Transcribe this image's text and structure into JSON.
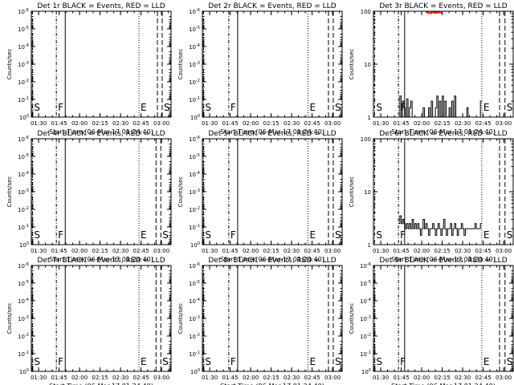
{
  "figure": {
    "xlabel": "Start Time (06-Mar-17 01:24:40)",
    "ylabel": "Counts/sec",
    "x_tick_labels": [
      "01:30",
      "01:45",
      "02:00",
      "02:15",
      "02:30",
      "02:45",
      "03:00"
    ],
    "x_ticks_minutes": [
      90,
      105,
      120,
      135,
      150,
      165,
      180
    ],
    "x_range_minutes": [
      84.67,
      187
    ],
    "flag_labels": {
      "S": "S",
      "F": "F",
      "E": "E"
    },
    "colors": {
      "events": "#000000",
      "lld": "#ff0000"
    }
  },
  "chart_data": [
    {
      "id": "det1r",
      "type": "line",
      "title": "Det 1r BLACK = Events, RED = LLD",
      "yscale": "log",
      "ylim": [
        1,
        1e-06
      ],
      "y_tick_labels": [
        "10^-6",
        "10^-5",
        "10^-4",
        "10^-3",
        "10^-2",
        "10^-1",
        "10^0"
      ],
      "y_tick_values": [
        1e-06,
        1e-05,
        0.0001,
        0.001,
        0.01,
        0.1,
        1
      ],
      "markers": [
        {
          "label": "S",
          "x": 85.5,
          "style": "dashdot"
        },
        {
          "label": "F",
          "x": 103.0,
          "style": "dashdot"
        },
        {
          "label": "",
          "x": 109.5,
          "style": "solid"
        },
        {
          "label": "E",
          "x": 163.5,
          "style": "dotted"
        },
        {
          "label": "",
          "x": 177.0,
          "style": "dashed"
        },
        {
          "label": "S",
          "x": 180.5,
          "style": "dashed"
        }
      ],
      "series": []
    },
    {
      "id": "det2r",
      "type": "line",
      "title": "Det 2r BLACK = Events, RED = LLD",
      "yscale": "log",
      "ylim": [
        1,
        1e-06
      ],
      "y_tick_labels": [
        "10^-6",
        "10^-5",
        "10^-4",
        "10^-3",
        "10^-2",
        "10^-1",
        "10^0"
      ],
      "y_tick_values": [
        1e-06,
        1e-05,
        0.0001,
        0.001,
        0.01,
        0.1,
        1
      ],
      "markers": [
        {
          "label": "S",
          "x": 85.5,
          "style": "dashdot"
        },
        {
          "label": "F",
          "x": 104.0,
          "style": "dashdot"
        },
        {
          "label": "",
          "x": 110.5,
          "style": "solid"
        },
        {
          "label": "E",
          "x": 162.0,
          "style": "dotted"
        },
        {
          "label": "",
          "x": 177.0,
          "style": "dashed"
        },
        {
          "label": "S",
          "x": 180.5,
          "style": "dashed"
        }
      ],
      "series": []
    },
    {
      "id": "det3r",
      "type": "line",
      "title": "Det 3r BLACK = Events, RED = LLD",
      "yscale": "log",
      "ylim": [
        1,
        100
      ],
      "y_tick_labels": [
        "1",
        "10",
        "100"
      ],
      "y_tick_values": [
        1,
        10,
        100
      ],
      "markers": [
        {
          "label": "S",
          "x": 85.5,
          "style": "dashdot"
        },
        {
          "label": "F",
          "x": 103.0,
          "style": "dashdot"
        },
        {
          "label": "",
          "x": 107.5,
          "style": "solid"
        },
        {
          "label": "E",
          "x": 164.0,
          "style": "dotted"
        },
        {
          "label": "",
          "x": 177.0,
          "style": "dashed"
        },
        {
          "label": "S",
          "x": 181.0,
          "style": "dashed"
        }
      ],
      "series": [
        {
          "color": "#000000",
          "x": [
            103,
            104,
            105,
            106,
            107,
            108,
            109,
            110,
            111,
            112,
            113,
            114,
            115,
            116,
            117,
            118,
            119,
            120,
            121,
            122,
            123,
            124,
            125,
            126,
            127,
            128,
            129,
            130,
            131,
            132,
            133,
            134,
            135,
            136,
            137,
            138,
            139,
            140,
            141,
            142,
            143,
            144,
            145,
            146,
            147,
            148,
            149,
            150,
            151,
            152,
            153,
            154,
            155,
            156,
            157,
            158,
            159,
            160,
            161,
            162,
            163
          ],
          "y": [
            1,
            2.5,
            1,
            2,
            1.5,
            1,
            2.2,
            1,
            1.5,
            2,
            1,
            1,
            1,
            1,
            1,
            1,
            1,
            1,
            1.5,
            1,
            1,
            1,
            1.5,
            1,
            2,
            1,
            1,
            1.5,
            2.5,
            1,
            2,
            1,
            2.5,
            1,
            2,
            1,
            1,
            1.5,
            1,
            2,
            1,
            2.5,
            1,
            1,
            1,
            1,
            1,
            1,
            1,
            1,
            1.5,
            1,
            1,
            1,
            1,
            1,
            1,
            1,
            1,
            1,
            2
          ]
        },
        {
          "color": "#ff0000",
          "x": [
            123,
            125,
            127,
            129,
            131,
            133
          ],
          "y": [
            95,
            92,
            96,
            93,
            95,
            94
          ]
        }
      ]
    },
    {
      "id": "det4r",
      "type": "line",
      "title": "Det 4r BLACK = Events, RED = LLD",
      "yscale": "log",
      "ylim": [
        1,
        1e-06
      ],
      "y_tick_labels": [
        "10^-6",
        "10^-5",
        "10^-4",
        "10^-3",
        "10^-2",
        "10^-1",
        "10^0"
      ],
      "y_tick_values": [
        1e-06,
        1e-05,
        0.0001,
        0.001,
        0.01,
        0.1,
        1
      ],
      "markers": [
        {
          "label": "S",
          "x": 85.5,
          "style": "dashdot"
        },
        {
          "label": "F",
          "x": 103.0,
          "style": "dashdot"
        },
        {
          "label": "",
          "x": 109.5,
          "style": "solid"
        },
        {
          "label": "E",
          "x": 163.5,
          "style": "dotted"
        },
        {
          "label": "",
          "x": 176.0,
          "style": "dashed"
        },
        {
          "label": "S",
          "x": 179.5,
          "style": "dashed"
        }
      ],
      "series": []
    },
    {
      "id": "det5r",
      "type": "line",
      "title": "Det 5r BLACK = Events, RED = LLD",
      "yscale": "log",
      "ylim": [
        1,
        1e-06
      ],
      "y_tick_labels": [
        "10^-6",
        "10^-5",
        "10^-4",
        "10^-3",
        "10^-2",
        "10^-1",
        "10^0"
      ],
      "y_tick_values": [
        1e-06,
        1e-05,
        0.0001,
        0.001,
        0.01,
        0.1,
        1
      ],
      "markers": [
        {
          "label": "S",
          "x": 85.5,
          "style": "dashdot"
        },
        {
          "label": "F",
          "x": 104.0,
          "style": "dashdot"
        },
        {
          "label": "",
          "x": 110.5,
          "style": "solid"
        },
        {
          "label": "E",
          "x": 162.0,
          "style": "dotted"
        },
        {
          "label": "",
          "x": 177.0,
          "style": "dashed"
        },
        {
          "label": "S",
          "x": 180.5,
          "style": "dashed"
        }
      ],
      "series": []
    },
    {
      "id": "det6r",
      "type": "line",
      "title": "Det 6r BLACK = Events, RED = LLD",
      "yscale": "log",
      "ylim": [
        1,
        100
      ],
      "y_tick_labels": [
        "1",
        "10",
        "100"
      ],
      "y_tick_values": [
        1,
        10,
        100
      ],
      "markers": [
        {
          "label": "S",
          "x": 85.5,
          "style": "dashdot"
        },
        {
          "label": "F",
          "x": 103.0,
          "style": "dashdot"
        },
        {
          "label": "",
          "x": 107.5,
          "style": "solid"
        },
        {
          "label": "E",
          "x": 164.0,
          "style": "dotted"
        },
        {
          "label": "",
          "x": 177.0,
          "style": "dashed"
        },
        {
          "label": "S",
          "x": 181.0,
          "style": "dashed"
        }
      ],
      "series": [
        {
          "color": "#000000",
          "x": [
            103,
            104,
            105,
            106,
            107,
            108,
            109,
            110,
            111,
            112,
            113,
            114,
            115,
            116,
            117,
            118,
            119,
            120,
            121,
            122,
            123,
            124,
            125,
            126,
            127,
            128,
            129,
            130,
            131,
            132,
            133,
            134,
            135,
            136,
            137,
            138,
            139,
            140,
            141,
            142,
            143,
            144,
            145,
            146,
            147,
            148,
            149,
            150,
            151,
            152,
            153,
            154,
            155,
            156,
            157,
            158,
            159,
            160,
            161,
            162,
            163
          ],
          "y": [
            2.5,
            3.5,
            2.5,
            3,
            2.5,
            2,
            2.5,
            2,
            2.5,
            2,
            3,
            2,
            2.5,
            2,
            2.5,
            2,
            1.5,
            2,
            3,
            2,
            2.5,
            2,
            1.5,
            2,
            2,
            2.5,
            2,
            1.5,
            2,
            2.5,
            2,
            1.5,
            2,
            3,
            2,
            1.5,
            2,
            2,
            2.5,
            1.5,
            2,
            2.5,
            2,
            1.5,
            2,
            2,
            2.5,
            2,
            1.5,
            2,
            2,
            2,
            2,
            2,
            2,
            2,
            2.5,
            2,
            2,
            2,
            2.5
          ]
        }
      ]
    },
    {
      "id": "det7r",
      "type": "line",
      "title": "Det 7r BLACK = Events, RED = LLD",
      "yscale": "log",
      "ylim": [
        1,
        1e-06
      ],
      "y_tick_labels": [
        "10^-6",
        "10^-5",
        "10^-4",
        "10^-3",
        "10^-2",
        "10^-1",
        "10^0"
      ],
      "y_tick_values": [
        1e-06,
        1e-05,
        0.0001,
        0.001,
        0.01,
        0.1,
        1
      ],
      "markers": [
        {
          "label": "S",
          "x": 85.5,
          "style": "dashdot"
        },
        {
          "label": "F",
          "x": 103.0,
          "style": "dashdot"
        },
        {
          "label": "",
          "x": 109.5,
          "style": "solid"
        },
        {
          "label": "E",
          "x": 163.5,
          "style": "dotted"
        },
        {
          "label": "",
          "x": 176.0,
          "style": "dashed"
        },
        {
          "label": "S",
          "x": 179.5,
          "style": "dashed"
        }
      ],
      "series": []
    },
    {
      "id": "det8r",
      "type": "line",
      "title": "Det 8r BLACK = Events, RED = LLD",
      "yscale": "log",
      "ylim": [
        1,
        1e-06
      ],
      "y_tick_labels": [
        "10^-6",
        "10^-5",
        "10^-4",
        "10^-3",
        "10^-2",
        "10^-1",
        "10^0"
      ],
      "y_tick_values": [
        1e-06,
        1e-05,
        0.0001,
        0.001,
        0.01,
        0.1,
        1
      ],
      "markers": [
        {
          "label": "S",
          "x": 85.5,
          "style": "dashdot"
        },
        {
          "label": "F",
          "x": 104.0,
          "style": "dashdot"
        },
        {
          "label": "",
          "x": 110.5,
          "style": "solid"
        },
        {
          "label": "E",
          "x": 162.0,
          "style": "dotted"
        },
        {
          "label": "",
          "x": 177.0,
          "style": "dashed"
        },
        {
          "label": "S",
          "x": 180.5,
          "style": "dashed"
        }
      ],
      "series": []
    },
    {
      "id": "det9r",
      "type": "line",
      "title": "Det 9r BLACK = Events, RED = LLD",
      "yscale": "log",
      "ylim": [
        1,
        1e-06
      ],
      "y_tick_labels": [
        "10^-6",
        "10^-5",
        "10^-4",
        "10^-3",
        "10^-2",
        "10^-1",
        "10^0"
      ],
      "y_tick_values": [
        1e-06,
        1e-05,
        0.0001,
        0.001,
        0.01,
        0.1,
        1
      ],
      "markers": [
        {
          "label": "S",
          "x": 85.5,
          "style": "dashdot"
        },
        {
          "label": "F",
          "x": 103.0,
          "style": "dashdot"
        },
        {
          "label": "",
          "x": 107.5,
          "style": "solid"
        },
        {
          "label": "E",
          "x": 164.0,
          "style": "dotted"
        },
        {
          "label": "",
          "x": 177.0,
          "style": "dashed"
        },
        {
          "label": "S",
          "x": 181.0,
          "style": "dashed"
        }
      ],
      "series": []
    }
  ]
}
